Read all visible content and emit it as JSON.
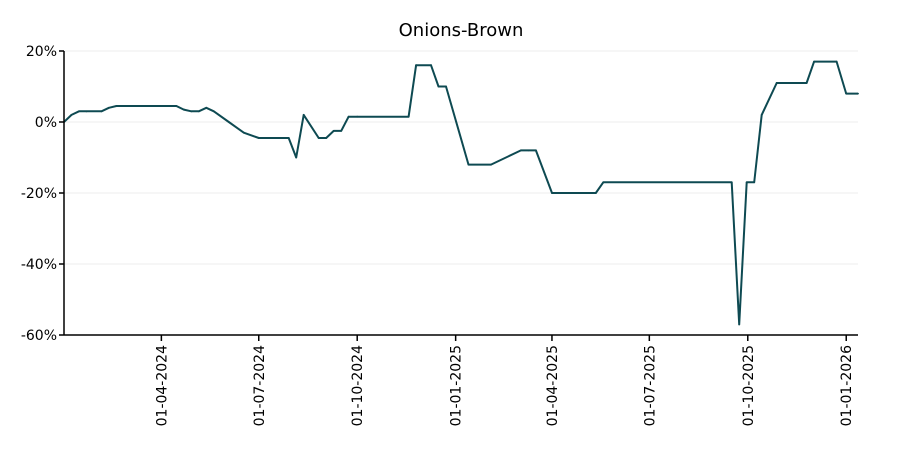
{
  "chart_data": {
    "type": "line",
    "title": "Onions-Brown",
    "xlabel": "",
    "ylabel": "",
    "y_unit": "%",
    "ylim": [
      -60,
      20
    ],
    "xlim": [
      "2024-01-01",
      "2026-01-12"
    ],
    "y_ticks": [
      20,
      0,
      -20,
      -40,
      -60
    ],
    "y_tick_labels": [
      "20%",
      "0%",
      "-20%",
      "-40%",
      "-60%"
    ],
    "x_ticks": [
      "2024-04-01",
      "2024-07-01",
      "2024-10-01",
      "2025-01-01",
      "2025-04-01",
      "2025-07-01",
      "2025-10-01",
      "2026-01-01"
    ],
    "x_tick_labels": [
      "01-04-2024",
      "01-07-2024",
      "01-10-2024",
      "01-01-2025",
      "01-04-2025",
      "01-07-2025",
      "01-10-2025",
      "01-01-2026"
    ],
    "grid": "horizontal",
    "line_color": "#0e4a52",
    "series": [
      {
        "x": [
          "2024-01-01",
          "2024-01-08",
          "2024-01-15",
          "2024-01-22",
          "2024-02-05",
          "2024-02-12",
          "2024-02-19",
          "2024-03-04",
          "2024-04-01",
          "2024-04-15",
          "2024-04-22",
          "2024-04-29",
          "2024-05-06",
          "2024-05-13",
          "2024-05-20",
          "2024-06-03",
          "2024-06-17",
          "2024-07-01",
          "2024-07-29",
          "2024-08-05",
          "2024-08-12",
          "2024-08-26",
          "2024-09-02",
          "2024-09-09",
          "2024-09-16",
          "2024-09-23",
          "2024-10-01",
          "2024-11-18",
          "2024-11-25",
          "2024-12-09",
          "2024-12-16",
          "2024-12-23",
          "2025-01-13",
          "2025-02-03",
          "2025-03-03",
          "2025-03-10",
          "2025-03-17",
          "2025-04-01",
          "2025-05-12",
          "2025-05-19",
          "2025-09-16",
          "2025-09-23",
          "2025-09-30",
          "2025-10-07",
          "2025-10-14",
          "2025-10-28",
          "2025-11-25",
          "2025-12-02",
          "2025-12-23",
          "2026-01-01",
          "2026-01-12"
        ],
        "values": [
          0,
          2,
          3,
          3,
          3,
          4,
          4.5,
          4.5,
          4.5,
          4.5,
          3.5,
          3,
          3,
          4,
          3,
          0,
          -3,
          -4.5,
          -4.5,
          -10,
          2,
          -4.5,
          -4.5,
          -2.5,
          -2.5,
          1.5,
          1.5,
          1.5,
          16,
          16,
          10,
          10,
          -12,
          -12,
          -8,
          -8,
          -8,
          -20,
          -20,
          -17,
          -17,
          -57,
          -17,
          -17,
          2,
          11,
          11,
          17,
          17,
          8,
          8
        ]
      }
    ]
  }
}
